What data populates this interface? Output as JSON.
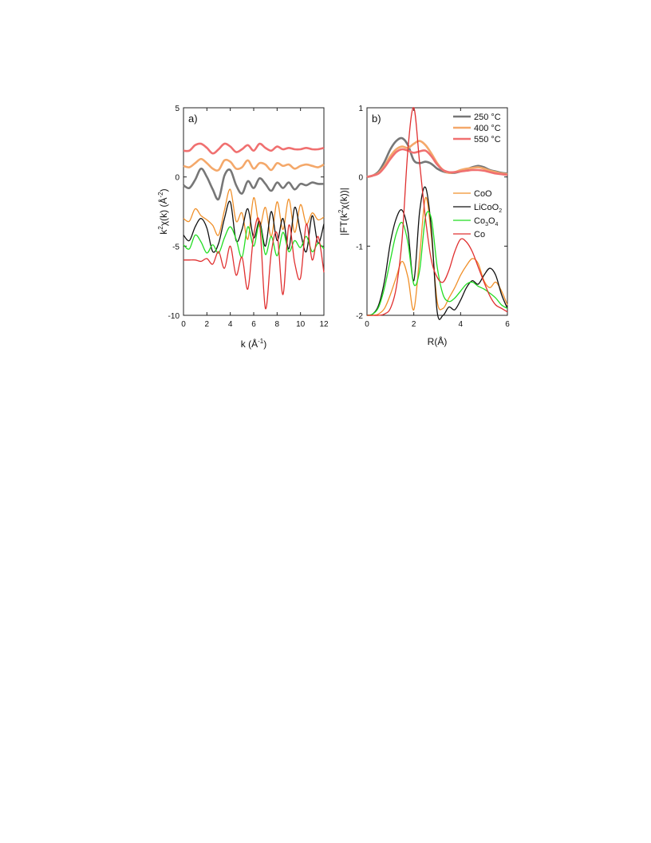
{
  "chart_data": [
    {
      "type": "line",
      "panel_label": "a)",
      "xlabel_base": "k (Å",
      "xlabel_sup": "-1",
      "xlabel_end": ")",
      "ylabel_k": "k",
      "ylabel_sup": "2",
      "ylabel_mid": "χ(k) (Å",
      "ylabel_sup2": "-2",
      "ylabel_end": ")",
      "xlim": [
        0,
        12
      ],
      "ylim": [
        -10,
        5
      ],
      "xticks": [
        "0",
        "2",
        "4",
        "6",
        "8",
        "10",
        "12"
      ],
      "yticks": [
        "5",
        "0",
        "-5",
        "-10"
      ],
      "x": [
        0,
        0.5,
        1,
        1.5,
        2,
        2.5,
        3,
        3.5,
        4,
        4.5,
        5,
        5.5,
        6,
        6.5,
        7,
        7.5,
        8,
        8.5,
        9,
        9.5,
        10,
        10.5,
        11,
        11.5,
        12
      ],
      "series": [
        {
          "name": "550 °C",
          "color": "#f07070",
          "width": 2.6,
          "values": [
            1.9,
            1.9,
            2.3,
            2.4,
            2.1,
            1.7,
            2.0,
            2.4,
            2.2,
            1.8,
            2.0,
            2.3,
            1.9,
            2.4,
            2.1,
            1.9,
            2.2,
            2.0,
            2.1,
            2.0,
            2.0,
            2.1,
            2.0,
            2.0,
            2.1
          ]
        },
        {
          "name": "400 °C",
          "color": "#f4a86a",
          "width": 2.6,
          "values": [
            0.8,
            0.7,
            1.0,
            1.3,
            1.0,
            0.6,
            0.5,
            1.2,
            1.1,
            0.6,
            0.7,
            1.2,
            0.6,
            1.0,
            0.9,
            0.5,
            1.0,
            0.8,
            0.9,
            0.6,
            0.8,
            0.9,
            0.8,
            0.7,
            0.9
          ]
        },
        {
          "name": "250 °C",
          "color": "#777777",
          "width": 2.6,
          "values": [
            -0.6,
            -0.8,
            -0.2,
            0.6,
            0.0,
            -0.9,
            -1.6,
            0.1,
            0.5,
            -0.6,
            -1.2,
            -0.3,
            -0.8,
            -0.1,
            -0.5,
            -1.0,
            -0.4,
            -0.8,
            -0.4,
            -0.9,
            -0.5,
            -0.6,
            -0.4,
            -0.5,
            -0.5
          ]
        },
        {
          "name": "CoO",
          "color": "#f0902a",
          "width": 1.3,
          "values": [
            -3.0,
            -3.2,
            -2.3,
            -2.8,
            -3.1,
            -3.5,
            -4.2,
            -2.4,
            -0.9,
            -3.2,
            -2.6,
            -4.5,
            -1.5,
            -3.6,
            -2.2,
            -4.3,
            -1.8,
            -3.8,
            -1.6,
            -4.0,
            -2.0,
            -3.4,
            -2.6,
            -3.1,
            -2.9
          ]
        },
        {
          "name": "LiCoO2",
          "color": "#111111",
          "width": 1.3,
          "values": [
            -4.2,
            -4.6,
            -3.6,
            -3.0,
            -3.7,
            -5.4,
            -4.8,
            -3.0,
            -1.8,
            -4.6,
            -3.8,
            -2.3,
            -4.4,
            -3.2,
            -5.0,
            -2.5,
            -4.6,
            -3.0,
            -5.2,
            -2.2,
            -4.0,
            -5.4,
            -2.8,
            -4.8,
            -3.4
          ]
        },
        {
          "name": "Co3O4",
          "color": "#22dd22",
          "width": 1.3,
          "values": [
            -4.9,
            -5.2,
            -4.2,
            -4.7,
            -5.5,
            -4.9,
            -5.5,
            -4.4,
            -3.6,
            -4.5,
            -5.8,
            -3.6,
            -5.0,
            -3.4,
            -5.6,
            -4.3,
            -5.7,
            -4.0,
            -5.4,
            -4.6,
            -5.1,
            -4.3,
            -5.4,
            -4.8,
            -5.2
          ]
        },
        {
          "name": "Co",
          "color": "#e03030",
          "width": 1.3,
          "values": [
            -6.0,
            -6.0,
            -6.0,
            -6.1,
            -5.9,
            -6.3,
            -5.4,
            -6.6,
            -5.0,
            -7.1,
            -5.8,
            -8.1,
            -4.2,
            -3.3,
            -9.5,
            -5.5,
            -4.1,
            -8.5,
            -3.5,
            -6.2,
            -7.3,
            -3.4,
            -6.0,
            -4.3,
            -6.9
          ]
        }
      ]
    },
    {
      "type": "line",
      "panel_label": "b)",
      "xlabel": "R(Å)",
      "ylabel_base": "|FT(k",
      "ylabel_sup": "2",
      "ylabel_end": "χ(k))|",
      "xlim": [
        0,
        6
      ],
      "ylim": [
        -2,
        1
      ],
      "xticks": [
        "0",
        "2",
        "4",
        "6"
      ],
      "yticks": [
        "1",
        "0",
        "-1",
        "-2"
      ],
      "x": [
        0,
        0.25,
        0.5,
        0.75,
        1,
        1.25,
        1.5,
        1.75,
        2,
        2.25,
        2.5,
        2.75,
        3,
        3.25,
        3.5,
        3.75,
        4,
        4.25,
        4.5,
        4.75,
        5,
        5.25,
        5.5,
        5.75,
        6
      ],
      "series": [
        {
          "name": "250 °C",
          "color": "#777777",
          "width": 2.6,
          "values": [
            0.0,
            0.02,
            0.08,
            0.22,
            0.4,
            0.52,
            0.56,
            0.46,
            0.24,
            0.2,
            0.22,
            0.19,
            0.12,
            0.08,
            0.06,
            0.06,
            0.08,
            0.11,
            0.14,
            0.16,
            0.14,
            0.1,
            0.08,
            0.06,
            0.05
          ]
        },
        {
          "name": "400 °C",
          "color": "#f4a86a",
          "width": 2.6,
          "values": [
            0.0,
            0.02,
            0.06,
            0.16,
            0.3,
            0.4,
            0.44,
            0.42,
            0.48,
            0.52,
            0.46,
            0.34,
            0.2,
            0.1,
            0.06,
            0.07,
            0.1,
            0.12,
            0.13,
            0.14,
            0.12,
            0.09,
            0.07,
            0.05,
            0.04
          ]
        },
        {
          "name": "550 °C",
          "color": "#f07070",
          "width": 2.6,
          "values": [
            0.0,
            0.02,
            0.05,
            0.14,
            0.26,
            0.36,
            0.4,
            0.38,
            0.35,
            0.37,
            0.38,
            0.3,
            0.18,
            0.1,
            0.07,
            0.07,
            0.08,
            0.09,
            0.1,
            0.1,
            0.09,
            0.07,
            0.05,
            0.04,
            0.03
          ]
        },
        {
          "name": "CoO",
          "color": "#f0902a",
          "width": 1.3,
          "values": [
            -2.0,
            -2.0,
            -1.98,
            -1.9,
            -1.7,
            -1.45,
            -1.22,
            -1.45,
            -1.92,
            -1.15,
            -0.3,
            -0.85,
            -1.8,
            -1.9,
            -1.75,
            -1.6,
            -1.42,
            -1.28,
            -1.18,
            -1.25,
            -1.5,
            -1.6,
            -1.52,
            -1.65,
            -1.85
          ]
        },
        {
          "name": "LiCoO2",
          "color": "#111111",
          "width": 1.3,
          "values": [
            -2.0,
            -1.98,
            -1.85,
            -1.5,
            -0.95,
            -0.6,
            -0.48,
            -0.78,
            -1.5,
            -0.5,
            -0.15,
            -0.75,
            -1.95,
            -2.0,
            -1.88,
            -1.92,
            -1.78,
            -1.6,
            -1.5,
            -1.55,
            -1.42,
            -1.32,
            -1.42,
            -1.7,
            -1.9
          ]
        },
        {
          "name": "Co3O4",
          "color": "#22dd22",
          "width": 1.3,
          "values": [
            -2.0,
            -1.98,
            -1.88,
            -1.6,
            -1.2,
            -0.82,
            -0.66,
            -0.95,
            -1.55,
            -1.35,
            -0.58,
            -0.6,
            -1.3,
            -1.7,
            -1.8,
            -1.75,
            -1.65,
            -1.55,
            -1.52,
            -1.58,
            -1.62,
            -1.68,
            -1.75,
            -1.85,
            -1.9
          ]
        },
        {
          "name": "Co",
          "color": "#e03030",
          "width": 1.3,
          "values": [
            -2.0,
            -2.0,
            -2.0,
            -1.98,
            -1.9,
            -1.6,
            -0.9,
            0.4,
            1.0,
            0.2,
            -0.6,
            -1.2,
            -1.45,
            -1.52,
            -1.35,
            -1.08,
            -0.9,
            -0.94,
            -1.08,
            -1.3,
            -1.52,
            -1.72,
            -1.85,
            -1.9,
            -1.95
          ]
        }
      ],
      "legend_top": [
        {
          "label": "250 °C",
          "color": "#777777"
        },
        {
          "label": "400 °C",
          "color": "#f4a86a"
        },
        {
          "label": "550 °C",
          "color": "#f07070"
        }
      ],
      "legend_bottom": [
        {
          "label": "CoO",
          "color": "#f0902a"
        },
        {
          "label_base": "LiCoO",
          "label_sub": "2",
          "color": "#111111"
        },
        {
          "label_base": "Co",
          "label_sub": "3",
          "label_mid": "O",
          "label_sub2": "4",
          "color": "#22dd22"
        },
        {
          "label": "Co",
          "color": "#e03030"
        }
      ]
    }
  ]
}
